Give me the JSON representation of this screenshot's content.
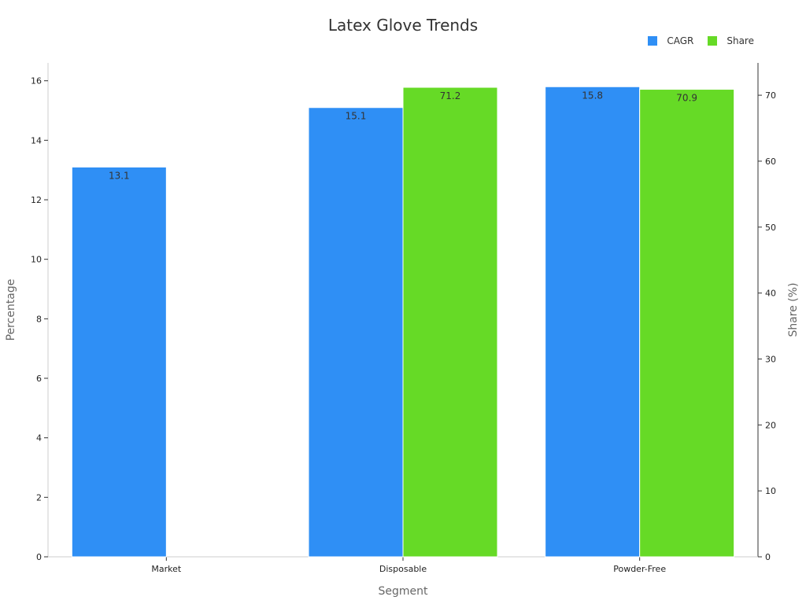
{
  "chart_data": {
    "type": "bar",
    "title": "Latex Glove Trends",
    "xlabel": "Segment",
    "ylabel": "Percentage",
    "y2label": "Share (%)",
    "categories": [
      "Market",
      "Disposable",
      "Powder-Free"
    ],
    "series": [
      {
        "name": "CAGR",
        "axis": "left",
        "color": "#2f8ff5",
        "values": [
          13.1,
          15.1,
          15.8
        ]
      },
      {
        "name": "Share",
        "axis": "right",
        "color": "#66da26",
        "values": [
          null,
          71.2,
          70.9
        ]
      }
    ],
    "ylim": [
      0,
      16.6
    ],
    "y2lim": [
      0,
      74.9
    ],
    "yticks": [
      0,
      2,
      4,
      6,
      8,
      10,
      12,
      14,
      16
    ],
    "y2ticks": [
      0,
      10,
      20,
      30,
      40,
      50,
      60,
      70
    ],
    "legend_position": "top-right",
    "grid": false
  }
}
